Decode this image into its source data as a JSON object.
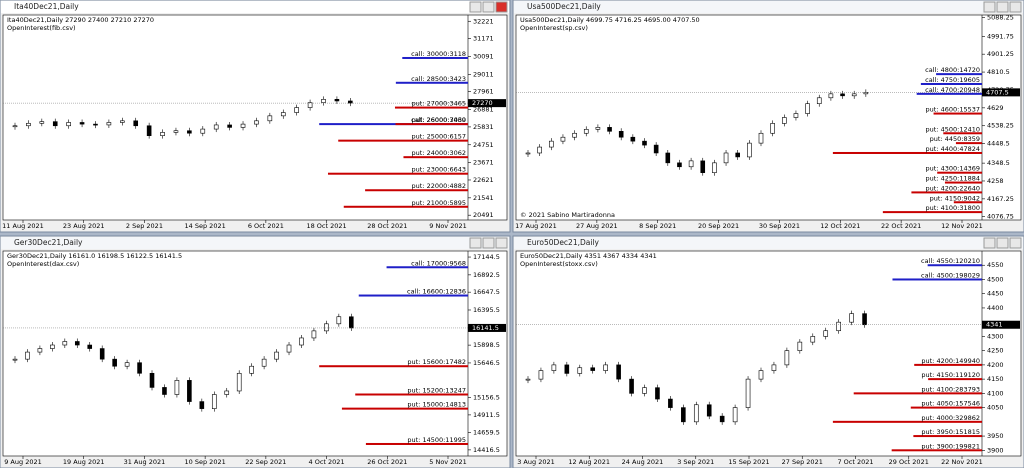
{
  "colors": {
    "call": "#1f1fc8",
    "put": "#c80000"
  },
  "windows": [
    {
      "title": "Ita40Dec21,Daily",
      "info": "Ita40Dec21,Daily 27290 27400 27210 27270",
      "indicator": "OpenInterest(fib.csv)",
      "ylim": [
        20200,
        32600
      ],
      "yticks": [
        32221,
        31171,
        30091,
        29011,
        27961,
        26881,
        25831,
        24751,
        23671,
        22621,
        21541,
        20491
      ],
      "current": 27270,
      "dates": [
        "11 Aug 2021",
        "23 Aug 2021",
        "2 Sep 2021",
        "14 Sep 2021",
        "6 Oct 2021",
        "18 Oct 2021",
        "28 Oct 2021",
        "9 Nov 2021"
      ],
      "closes": [
        25900,
        26050,
        26150,
        25900,
        26100,
        26000,
        25950,
        26100,
        26200,
        25900,
        25300,
        25500,
        25600,
        25450,
        25700,
        25950,
        25800,
        26000,
        26200,
        26500,
        26700,
        27000,
        27300,
        27500,
        27400,
        27270
      ],
      "open_interest": [
        {
          "label": "call: 30000:3118",
          "side": "call",
          "strike": 30000,
          "oi": 3118
        },
        {
          "label": "call: 28500:3423",
          "side": "call",
          "strike": 28500,
          "oi": 3423
        },
        {
          "label": "put: 27000:3465",
          "side": "put",
          "strike": 27000,
          "oi": 3465
        },
        {
          "label": "call: 26000:7060",
          "side": "call",
          "strike": 26000,
          "oi": 7060
        },
        {
          "label": "put: 26000:3439",
          "side": "put",
          "strike": 26000,
          "oi": 3439
        },
        {
          "label": "put: 25000:6157",
          "side": "put",
          "strike": 25000,
          "oi": 6157
        },
        {
          "label": "put: 24000:3062",
          "side": "put",
          "strike": 24000,
          "oi": 3062
        },
        {
          "label": "put: 23000:6643",
          "side": "put",
          "strike": 23000,
          "oi": 6643
        },
        {
          "label": "put: 22000:4882",
          "side": "put",
          "strike": 22000,
          "oi": 4882
        },
        {
          "label": "put: 21000:5895",
          "side": "put",
          "strike": 21000,
          "oi": 5895
        }
      ]
    },
    {
      "title": "Usa500Dec21,Daily",
      "info": "Usa500Dec21,Daily 4699.75 4716.25 4695.00 4707.50",
      "indicator": "OpenInterest(sp.csv)",
      "copyright": "© 2021 Sabino Martiradonna",
      "ylim": [
        4060,
        5100
      ],
      "yticks": [
        5088.25,
        4991.75,
        4901.25,
        4810.5,
        4720.75,
        4629,
        4538.25,
        4448.5,
        4348.5,
        4258,
        4167.25,
        4076.75
      ],
      "current": 4707.5,
      "dates": [
        "17 Aug 2021",
        "27 Aug 2021",
        "8 Sep 2021",
        "20 Sep 2021",
        "30 Sep 2021",
        "12 Oct 2021",
        "22 Oct 2021",
        "12 Nov 2021"
      ],
      "closes": [
        4400,
        4430,
        4460,
        4480,
        4500,
        4520,
        4530,
        4510,
        4480,
        4460,
        4440,
        4400,
        4350,
        4330,
        4360,
        4300,
        4350,
        4400,
        4380,
        4450,
        4500,
        4550,
        4580,
        4600,
        4650,
        4680,
        4700,
        4690,
        4700,
        4707.5
      ],
      "open_interest": [
        {
          "label": "call: 4800:14720",
          "side": "call",
          "strike": 4800,
          "oi": 14720
        },
        {
          "label": "call: 4750:19605",
          "side": "call",
          "strike": 4750,
          "oi": 19605
        },
        {
          "label": "call: 4700:20948",
          "side": "call",
          "strike": 4700,
          "oi": 20948
        },
        {
          "label": "put: 4600:15537",
          "side": "put",
          "strike": 4600,
          "oi": 15537
        },
        {
          "label": "put: 4500:12410",
          "side": "put",
          "strike": 4500,
          "oi": 12410
        },
        {
          "label": "put: 4450:8359",
          "side": "put",
          "strike": 4450,
          "oi": 8359
        },
        {
          "label": "put: 4400:47824",
          "side": "put",
          "strike": 4400,
          "oi": 47824
        },
        {
          "label": "put: 4300:14369",
          "side": "put",
          "strike": 4300,
          "oi": 14369
        },
        {
          "label": "put: 4250:11884",
          "side": "put",
          "strike": 4250,
          "oi": 11884
        },
        {
          "label": "put: 4200:22640",
          "side": "put",
          "strike": 4200,
          "oi": 22640
        },
        {
          "label": "put: 4150:9042",
          "side": "put",
          "strike": 4150,
          "oi": 9042
        },
        {
          "label": "put: 4100:31800",
          "side": "put",
          "strike": 4100,
          "oi": 31800
        }
      ]
    },
    {
      "title": "Ger30Dec21,Daily",
      "info": "Ger30Dec21,Daily 16161.0 16198.5 16122.5 16141.5",
      "indicator": "OpenInterest(dax.csv)",
      "ylim": [
        14330,
        17230
      ],
      "yticks": [
        17144.5,
        16892.5,
        16647.5,
        16395.5,
        15898.5,
        15646.5,
        15156.5,
        14911.5,
        14659.5,
        14416.5
      ],
      "current": 16141.5,
      "dates": [
        "9 Aug 2021",
        "19 Aug 2021",
        "31 Aug 2021",
        "10 Sep 2021",
        "22 Sep 2021",
        "4 Oct 2021",
        "26 Oct 2021",
        "5 Nov 2021"
      ],
      "closes": [
        15700,
        15800,
        15850,
        15900,
        15950,
        15900,
        15850,
        15700,
        15600,
        15650,
        15500,
        15300,
        15200,
        15400,
        15100,
        15000,
        15200,
        15250,
        15500,
        15600,
        15700,
        15800,
        15900,
        16000,
        16100,
        16200,
        16300,
        16141.5
      ],
      "open_interest": [
        {
          "label": "call: 17000:9568",
          "side": "call",
          "strike": 17000,
          "oi": 9568
        },
        {
          "label": "call: 16600:12836",
          "side": "call",
          "strike": 16600,
          "oi": 12836
        },
        {
          "label": "put: 15600:17482",
          "side": "put",
          "strike": 15600,
          "oi": 17482
        },
        {
          "label": "put: 15200:13247",
          "side": "put",
          "strike": 15200,
          "oi": 13247
        },
        {
          "label": "put: 15000:14813",
          "side": "put",
          "strike": 15000,
          "oi": 14813
        },
        {
          "label": "put: 14500:11995",
          "side": "put",
          "strike": 14500,
          "oi": 11995
        }
      ]
    },
    {
      "title": "Euro50Dec21,Daily",
      "info": "Euro50Dec21,Daily 4351 4367 4334 4341",
      "indicator": "OpenInterest(stoxx.csv)",
      "ylim": [
        3880,
        4600
      ],
      "yticks": [
        4550,
        4500,
        4450,
        4400,
        4300,
        4250,
        4200,
        4150,
        4100,
        4050,
        3950,
        3900
      ],
      "current": 4341,
      "dates": [
        "3 Aug 2021",
        "12 Aug 2021",
        "24 Aug 2021",
        "3 Sep 2021",
        "15 Sep 2021",
        "27 Sep 2021",
        "7 Oct 2021",
        "29 Oct 2021",
        "22 Nov 2021"
      ],
      "closes": [
        4150,
        4180,
        4200,
        4170,
        4190,
        4180,
        4200,
        4150,
        4100,
        4120,
        4080,
        4050,
        4000,
        4060,
        4020,
        4000,
        4050,
        4150,
        4180,
        4200,
        4250,
        4280,
        4300,
        4320,
        4350,
        4380,
        4341
      ],
      "open_interest": [
        {
          "label": "call: 4550:120210",
          "side": "call",
          "strike": 4550,
          "oi": 120210
        },
        {
          "label": "call: 4500:198029",
          "side": "call",
          "strike": 4500,
          "oi": 198029
        },
        {
          "label": "put: 4200:149940",
          "side": "put",
          "strike": 4200,
          "oi": 149940
        },
        {
          "label": "put: 4150:119120",
          "side": "put",
          "strike": 4150,
          "oi": 119120
        },
        {
          "label": "put: 4100:283793",
          "side": "put",
          "strike": 4100,
          "oi": 283793
        },
        {
          "label": "put: 4050:157546",
          "side": "put",
          "strike": 4050,
          "oi": 157546
        },
        {
          "label": "put: 4000:329862",
          "side": "put",
          "strike": 4000,
          "oi": 329862
        },
        {
          "label": "put: 3950:151815",
          "side": "put",
          "strike": 3950,
          "oi": 151815
        },
        {
          "label": "put: 3900:199821",
          "side": "put",
          "strike": 3900,
          "oi": 199821
        }
      ]
    }
  ]
}
